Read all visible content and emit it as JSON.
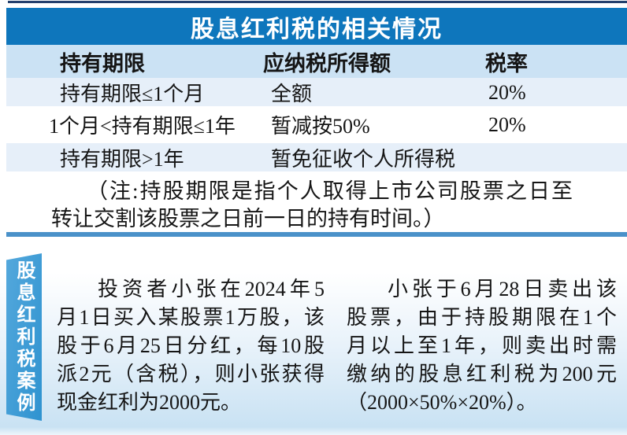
{
  "colors": {
    "top_rule": "#24406e",
    "title_band": "#0e76bc",
    "header_row_bg": "#cbe2f4",
    "zebra_row_bg": "#e6eff9",
    "divider": "#4a91c9",
    "ribbon_blue": "#3b9dd6",
    "bottom_fade": "#c9e2f3"
  },
  "table": {
    "title": "股息红利税的相关情况",
    "headers": [
      "持有期限",
      "应纳税所得额",
      "税率"
    ],
    "rows": [
      {
        "cells": [
          "持有期限≤1个月",
          "全额",
          "20%"
        ]
      },
      {
        "cells": [
          "1个月<持有期限≤1年",
          "暂减按50%",
          "20%"
        ]
      },
      {
        "cells": [
          "持有期限>1年",
          "暂免征收个人所得税",
          ""
        ]
      }
    ],
    "note_lines": [
      "（注:持股期限是指个人取得上市公司股票之日至",
      "转让交割该股票之日前一日的持有时间。）"
    ]
  },
  "case_section": {
    "ribbon_label": "股息红利税案例",
    "left_paragraph_lines": [
      "投资者小张在2024年5",
      "月1日买入某股票1万股，该",
      "股于6月25日分红，每10股",
      "派2元（含税），则小张获得",
      "现金红利为2000元。"
    ],
    "right_paragraph_lines": [
      "小张于6月28日卖出该",
      "股票，由于持股期限在1个",
      "月以上至1年，则卖出时需",
      "缴纳的股息红利税为200元",
      "（2000×50%×20%）。"
    ]
  }
}
